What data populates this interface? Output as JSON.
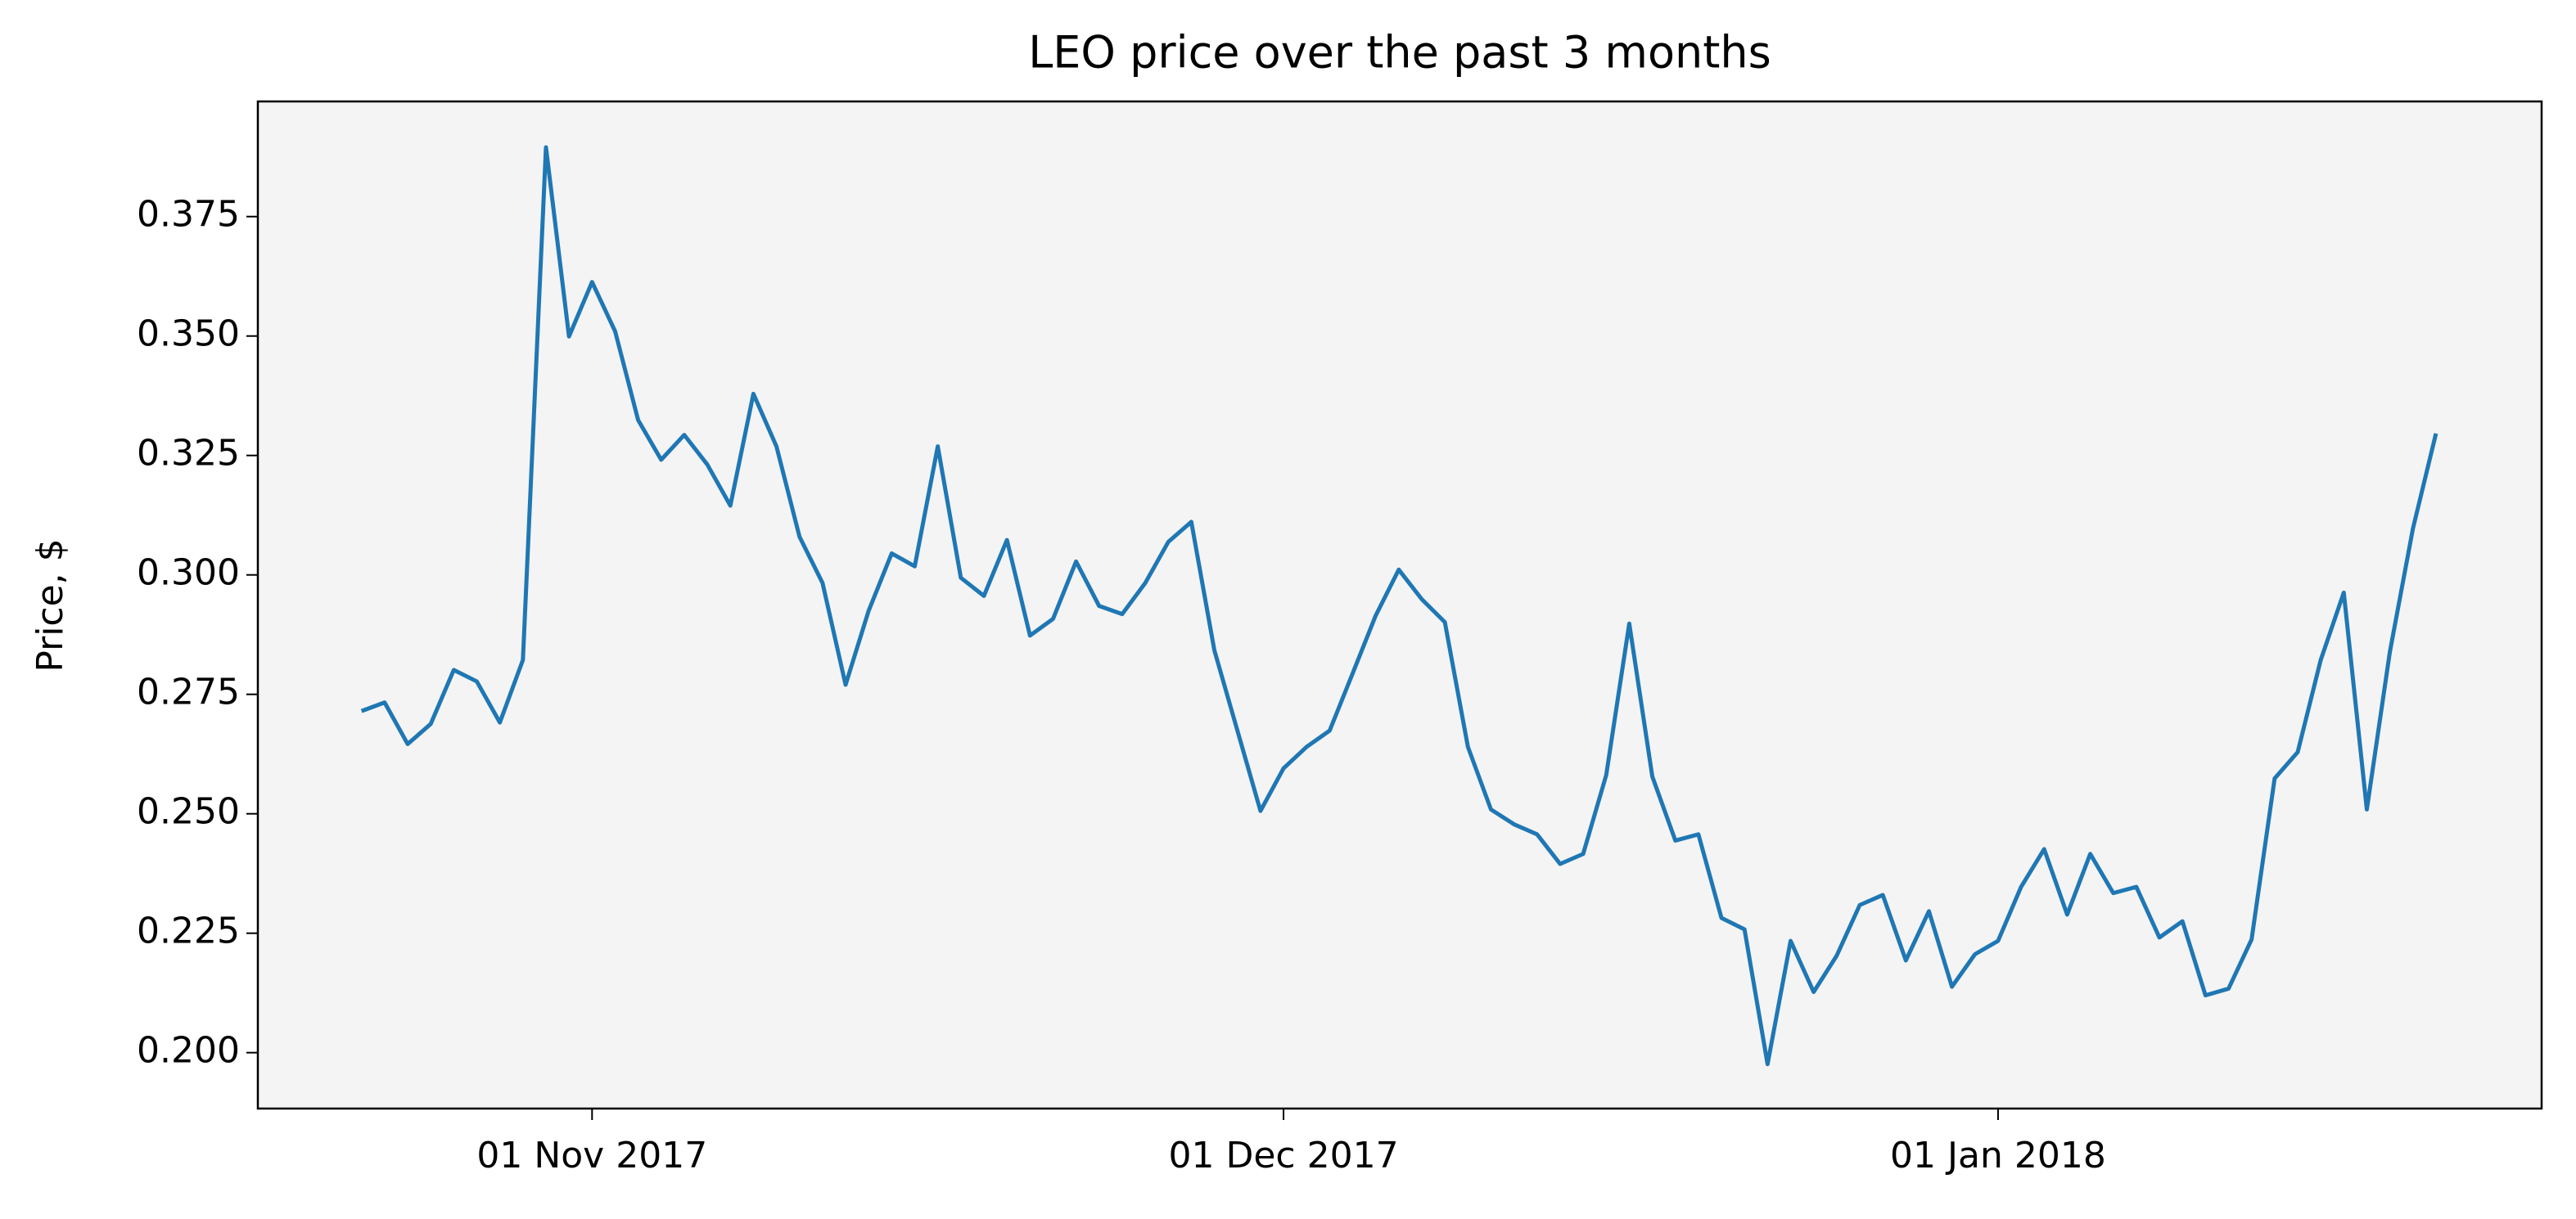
{
  "chart_data": {
    "type": "line",
    "title": "LEO price over the past 3 months",
    "y_label": "Price, $",
    "x": [
      "2017-10-22",
      "2017-10-23",
      "2017-10-24",
      "2017-10-25",
      "2017-10-26",
      "2017-10-27",
      "2017-10-28",
      "2017-10-29",
      "2017-10-30",
      "2017-10-31",
      "2017-11-01",
      "2017-11-02",
      "2017-11-03",
      "2017-11-04",
      "2017-11-05",
      "2017-11-06",
      "2017-11-07",
      "2017-11-08",
      "2017-11-09",
      "2017-11-10",
      "2017-11-11",
      "2017-11-12",
      "2017-11-13",
      "2017-11-14",
      "2017-11-15",
      "2017-11-16",
      "2017-11-17",
      "2017-11-18",
      "2017-11-19",
      "2017-11-20",
      "2017-11-21",
      "2017-11-22",
      "2017-11-23",
      "2017-11-24",
      "2017-11-25",
      "2017-11-26",
      "2017-11-27",
      "2017-11-28",
      "2017-11-29",
      "2017-11-30",
      "2017-12-01",
      "2017-12-02",
      "2017-12-03",
      "2017-12-04",
      "2017-12-05",
      "2017-12-06",
      "2017-12-07",
      "2017-12-08",
      "2017-12-09",
      "2017-12-10",
      "2017-12-11",
      "2017-12-12",
      "2017-12-13",
      "2017-12-14",
      "2017-12-15",
      "2017-12-16",
      "2017-12-17",
      "2017-12-18",
      "2017-12-19",
      "2017-12-20",
      "2017-12-21",
      "2017-12-22",
      "2017-12-23",
      "2017-12-24",
      "2017-12-25",
      "2017-12-26",
      "2017-12-27",
      "2017-12-28",
      "2017-12-29",
      "2017-12-30",
      "2017-12-31",
      "2018-01-01",
      "2018-01-02",
      "2018-01-03",
      "2018-01-04",
      "2018-01-05",
      "2018-01-06",
      "2018-01-07",
      "2018-01-08",
      "2018-01-09",
      "2018-01-10",
      "2018-01-11",
      "2018-01-12",
      "2018-01-13",
      "2018-01-14",
      "2018-01-15",
      "2018-01-16",
      "2018-01-17",
      "2018-01-18",
      "2018-01-19",
      "2018-01-20"
    ],
    "values": [
      0.2715,
      0.2733,
      0.2646,
      0.2688,
      0.2801,
      0.2777,
      0.2691,
      0.2822,
      0.3895,
      0.3499,
      0.3613,
      0.351,
      0.3324,
      0.3241,
      0.3293,
      0.3231,
      0.3145,
      0.3379,
      0.3269,
      0.308,
      0.2983,
      0.277,
      0.2925,
      0.3045,
      0.3018,
      0.3269,
      0.2994,
      0.2956,
      0.3073,
      0.2873,
      0.2908,
      0.3028,
      0.2935,
      0.2918,
      0.2983,
      0.3069,
      0.3111,
      0.2842,
      0.2674,
      0.2506,
      0.2595,
      0.264,
      0.2674,
      0.2794,
      0.2915,
      0.3011,
      0.2949,
      0.2901,
      0.264,
      0.2509,
      0.2478,
      0.2457,
      0.2395,
      0.2416,
      0.2581,
      0.2898,
      0.2578,
      0.2444,
      0.2457,
      0.2282,
      0.2258,
      0.1976,
      0.2234,
      0.2127,
      0.2203,
      0.2309,
      0.233,
      0.2193,
      0.2296,
      0.2138,
      0.2206,
      0.2234,
      0.2347,
      0.2426,
      0.2289,
      0.2416,
      0.2334,
      0.2347,
      0.2241,
      0.2275,
      0.212,
      0.2134,
      0.2237,
      0.2574,
      0.2629,
      0.2822,
      0.2963,
      0.2509,
      0.2839,
      0.3097,
      0.3296
    ],
    "color": "#1f77b4",
    "background": "#f4f4f4",
    "xlim": [
      "2017-10-17T12:00:00Z",
      "2018-01-24T14:00:00Z"
    ],
    "xticks": [
      {
        "value": "2017-11-01",
        "label": "01 Nov 2017"
      },
      {
        "value": "2017-12-01",
        "label": "01 Dec 2017"
      },
      {
        "value": "2018-01-01",
        "label": "01 Jan 2018"
      }
    ],
    "ylim": [
      0.1883,
      0.3991
    ],
    "yticks": [
      {
        "value": 0.2,
        "label": "0.200"
      },
      {
        "value": 0.225,
        "label": "0.225"
      },
      {
        "value": 0.25,
        "label": "0.250"
      },
      {
        "value": 0.275,
        "label": "0.275"
      },
      {
        "value": 0.3,
        "label": "0.300"
      },
      {
        "value": 0.325,
        "label": "0.325"
      },
      {
        "value": 0.35,
        "label": "0.350"
      },
      {
        "value": 0.375,
        "label": "0.375"
      }
    ]
  }
}
